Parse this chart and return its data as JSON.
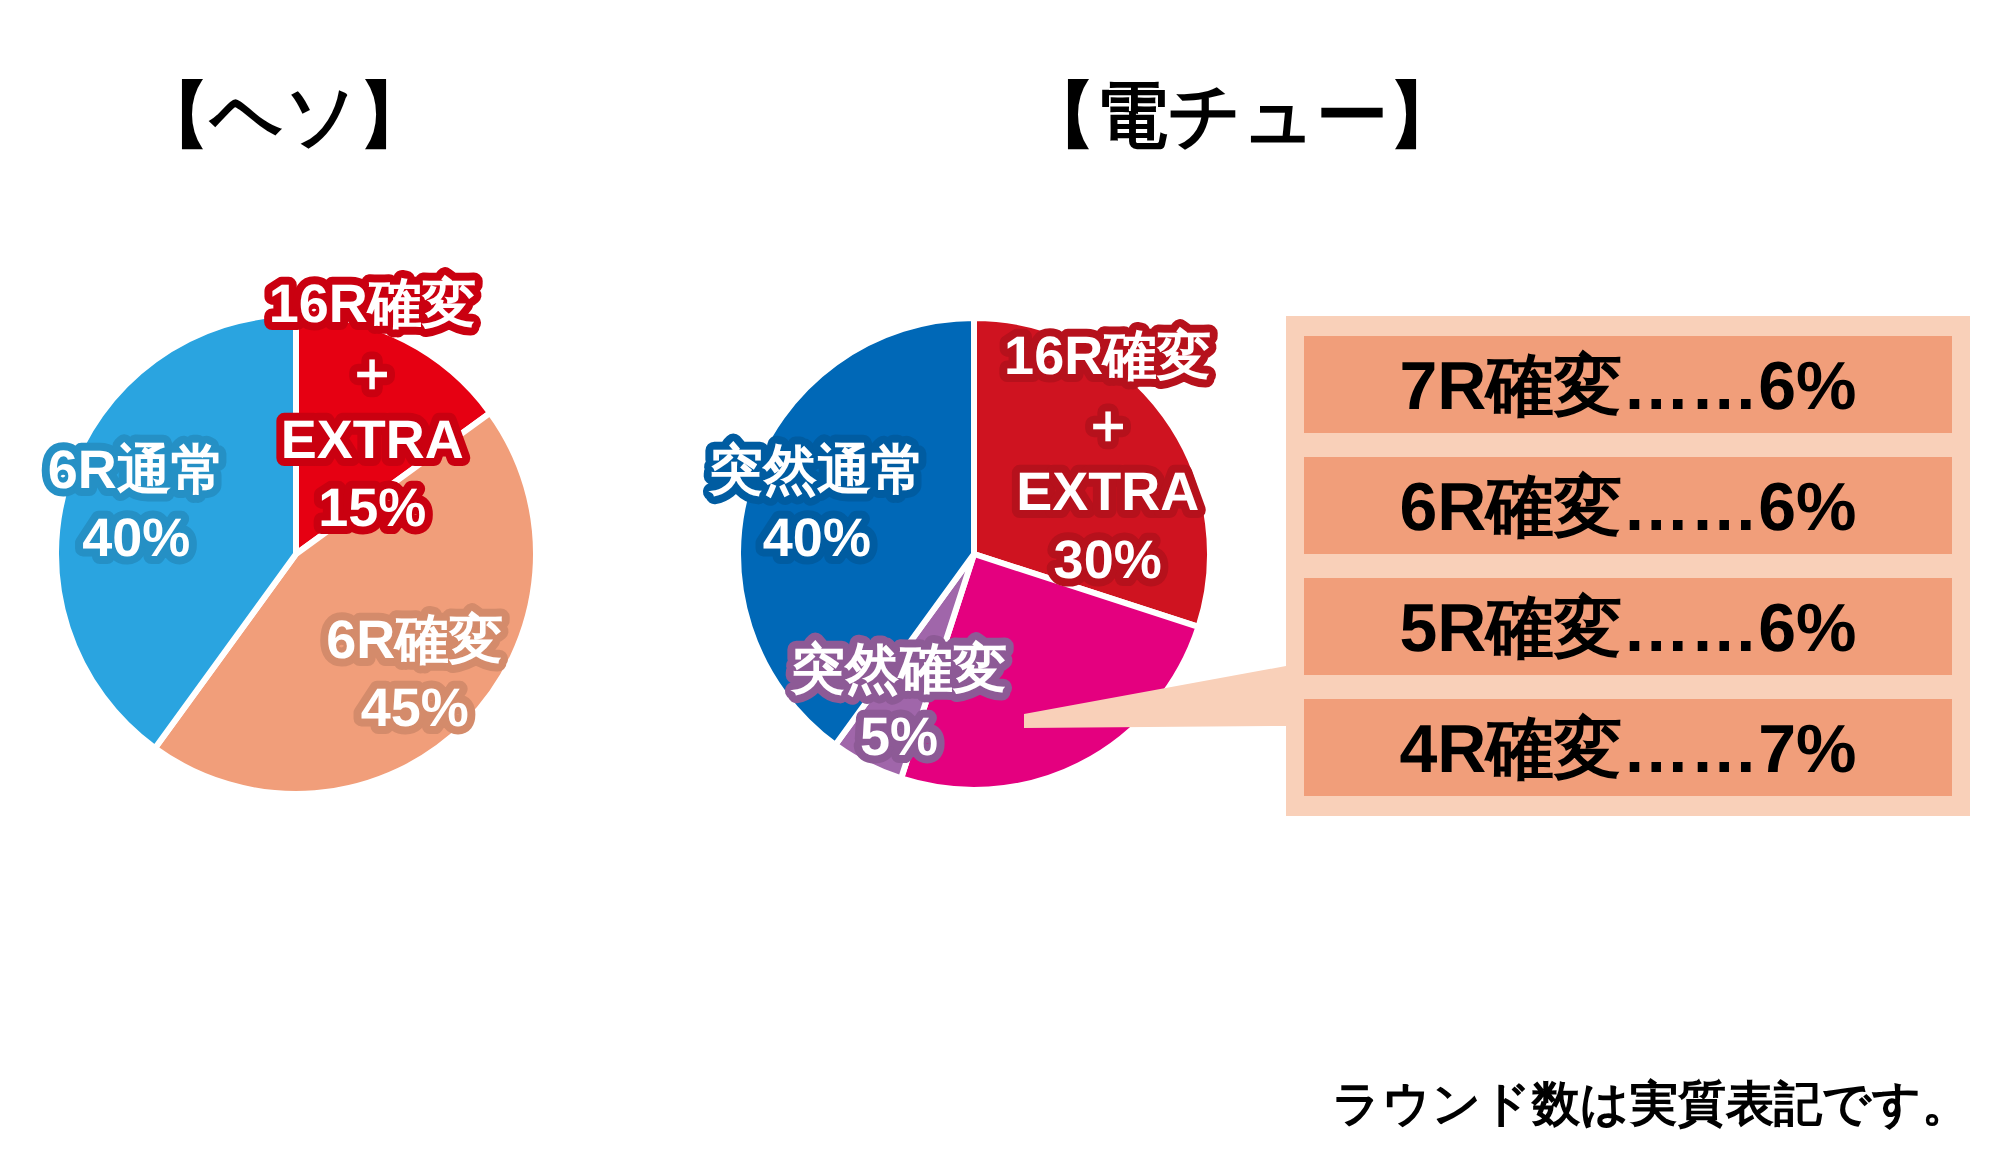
{
  "chart_data": [
    {
      "type": "pie",
      "title": "【ヘソ】",
      "categories": [
        "16R確変＋EXTRA",
        "6R確変",
        "6R通常"
      ],
      "values": [
        15,
        45,
        40
      ],
      "colors": [
        "#e60012",
        "#f19e7a",
        "#2aa4e0"
      ],
      "value_labels": [
        "15%",
        "45%",
        "40%"
      ]
    },
    {
      "type": "pie",
      "title": "【電チュー】",
      "categories": [
        "16R確変＋EXTRA",
        null,
        "突然確変",
        "突然通常"
      ],
      "values": [
        30,
        25,
        5,
        40
      ],
      "colors": [
        "#cf1320",
        "#e4007f",
        "#a066aa",
        "#0068b7"
      ],
      "value_labels": [
        "30%",
        null,
        "5%",
        "40%"
      ],
      "annotations": [
        "ラウンド数は実質表記です。"
      ]
    },
    {
      "type": "other",
      "annotations": [
        "7R確変……6%",
        "6R確変……6%",
        "5R確変……6%",
        "4R確変……7%"
      ]
    }
  ]
}
